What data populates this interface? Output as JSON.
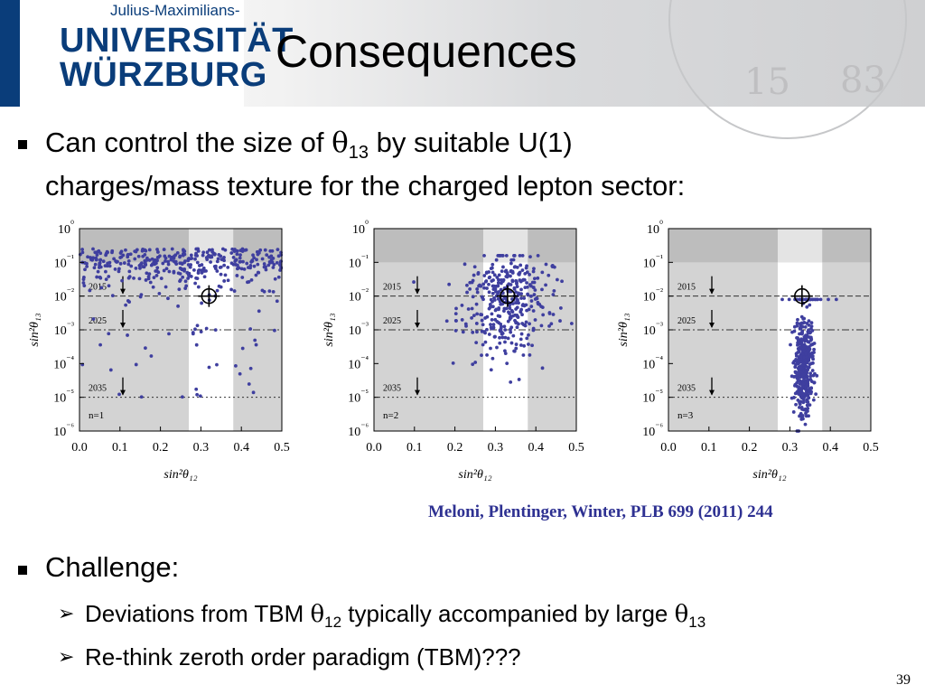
{
  "header": {
    "logo_line1": "Julius-Maximilians-",
    "logo_line2": "UNIVERSITÄT",
    "logo_line3": "WÜRZBURG",
    "title": "Consequences",
    "seal_numerals": [
      "15",
      "83"
    ]
  },
  "bullets": {
    "b1_a": "Can control the size of ",
    "b1_sym": "θ",
    "b1_sub": "13",
    "b1_b": " by suitable U(1)",
    "b1_line2": "charges/mass texture for the charged lepton sector:",
    "b2": "Challenge:",
    "s1_a": "Deviations from TBM ",
    "s1_sym": "θ",
    "s1_sub": "12",
    "s1_b": " typically accompanied by large ",
    "s1_sym2": "θ",
    "s1_sub2": "13",
    "s2": "Re-think zeroth order paradigm (TBM)???"
  },
  "citation": "Meloni, Plentinger, Winter, PLB 699 (2011) 244",
  "page_number": "39",
  "chart_data": [
    {
      "type": "scatter",
      "panel_label": "n=1",
      "xlabel": "sin²θ₁₂",
      "ylabel": "sin²θ₁₃",
      "xlim": [
        0.0,
        0.5
      ],
      "ylim_log10": [
        -6,
        0
      ],
      "xticks": [
        "0.0",
        "0.1",
        "0.2",
        "0.3",
        "0.4",
        "0.5"
      ],
      "yticks": [
        "10⁰",
        "10⁻¹",
        "10⁻²",
        "10⁻³",
        "10⁻⁴",
        "10⁻⁵",
        "10⁻⁶"
      ],
      "reference_lines": [
        {
          "label": "2015",
          "y": 0.01
        },
        {
          "label": "2025",
          "y": 0.001
        },
        {
          "label": "2035",
          "y": 1e-05
        }
      ],
      "best_fit": {
        "x": 0.32,
        "y": 0.01
      },
      "allowed_band_x": [
        0.27,
        0.38
      ],
      "excluded_y_above": 0.1,
      "seed": 11,
      "points": {
        "count": 420,
        "x_range": [
          0.0,
          0.5
        ],
        "y_log10_range": [
          -5,
          0
        ],
        "y_concentration_log10": -0.6
      }
    },
    {
      "type": "scatter",
      "panel_label": "n=2",
      "xlabel": "sin²θ₁₂",
      "ylabel": "sin²θ₁₃",
      "xlim": [
        0.0,
        0.5
      ],
      "ylim_log10": [
        -6,
        0
      ],
      "xticks": [
        "0.0",
        "0.1",
        "0.2",
        "0.3",
        "0.4",
        "0.5"
      ],
      "yticks": [
        "10⁰",
        "10⁻¹",
        "10⁻²",
        "10⁻³",
        "10⁻⁴",
        "10⁻⁵",
        "10⁻⁶"
      ],
      "reference_lines": [
        {
          "label": "2015",
          "y": 0.01
        },
        {
          "label": "2025",
          "y": 0.001
        },
        {
          "label": "2035",
          "y": 1e-05
        }
      ],
      "best_fit": {
        "x": 0.33,
        "y": 0.01
      },
      "allowed_band_x": [
        0.27,
        0.38
      ],
      "excluded_y_above": 0.1,
      "seed": 23,
      "points": {
        "count": 380,
        "x_center": 0.33,
        "x_spread": 0.05,
        "y_log10_range": [
          -5.2,
          -0.8
        ],
        "y_concentration_log10": -2.3
      }
    },
    {
      "type": "scatter",
      "panel_label": "n=3",
      "xlabel": "sin²θ₁₂",
      "ylabel": "sin²θ₁₃",
      "xlim": [
        0.0,
        0.5
      ],
      "ylim_log10": [
        -6,
        0
      ],
      "xticks": [
        "0.0",
        "0.1",
        "0.2",
        "0.3",
        "0.4",
        "0.5"
      ],
      "yticks": [
        "10⁰",
        "10⁻¹",
        "10⁻²",
        "10⁻³",
        "10⁻⁴",
        "10⁻⁵",
        "10⁻⁶"
      ],
      "reference_lines": [
        {
          "label": "2015",
          "y": 0.01
        },
        {
          "label": "2025",
          "y": 0.001
        },
        {
          "label": "2035",
          "y": 1e-05
        }
      ],
      "best_fit": {
        "x": 0.33,
        "y": 0.01
      },
      "allowed_band_x": [
        0.27,
        0.38
      ],
      "excluded_y_above": 0.1,
      "seed": 37,
      "points": {
        "count": 420,
        "x_center": 0.335,
        "x_spread": 0.012,
        "y_log10_range": [
          -6,
          -2.1
        ],
        "y_concentration_log10": -4.0
      }
    }
  ],
  "colors": {
    "points": "#3f3f9f",
    "uni_blue": "#0a3d7a",
    "citation": "#2e3192"
  }
}
